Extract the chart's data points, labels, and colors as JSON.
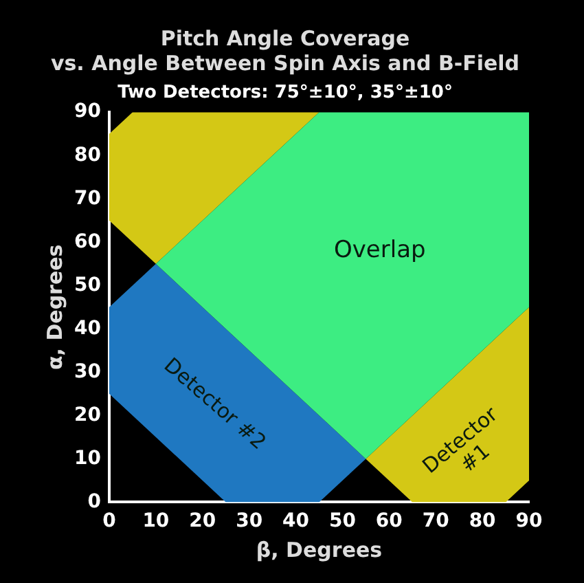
{
  "chart_data": {
    "type": "area",
    "title": [
      "Pitch Angle Coverage",
      "vs. Angle Between Spin Axis and B-Field"
    ],
    "subtitle": "Two Detectors: 75°±10°, 35°±10°",
    "xlabel": "β, Degrees",
    "ylabel": "α, Degrees",
    "xlim": [
      0,
      90
    ],
    "ylim": [
      0,
      90
    ],
    "xticks": [
      0,
      10,
      20,
      30,
      40,
      50,
      60,
      70,
      80,
      90
    ],
    "yticks": [
      0,
      10,
      20,
      30,
      40,
      50,
      60,
      70,
      80,
      90
    ],
    "grid": false,
    "legend": false,
    "series": [
      {
        "name": "Overlap",
        "color": "#3ded82",
        "x": [
          10,
          55,
          90,
          90,
          45
        ],
        "values": [
          55,
          10,
          45,
          90,
          90
        ]
      },
      {
        "name": "Detector #2",
        "color": "#1f78c1",
        "x": [
          0,
          25,
          45,
          55,
          10,
          0
        ],
        "values": [
          25,
          0,
          0,
          10,
          55,
          45
        ]
      },
      {
        "name": "Detector\n#1",
        "color": "#d4c815",
        "x": [
          55,
          65,
          85,
          90,
          90
        ],
        "values": [
          10,
          0,
          0,
          5,
          45
        ]
      },
      {
        "color": "#d4c815",
        "x": [
          0,
          10,
          45,
          5,
          0
        ],
        "values": [
          65,
          55,
          90,
          90,
          85
        ]
      }
    ]
  }
}
